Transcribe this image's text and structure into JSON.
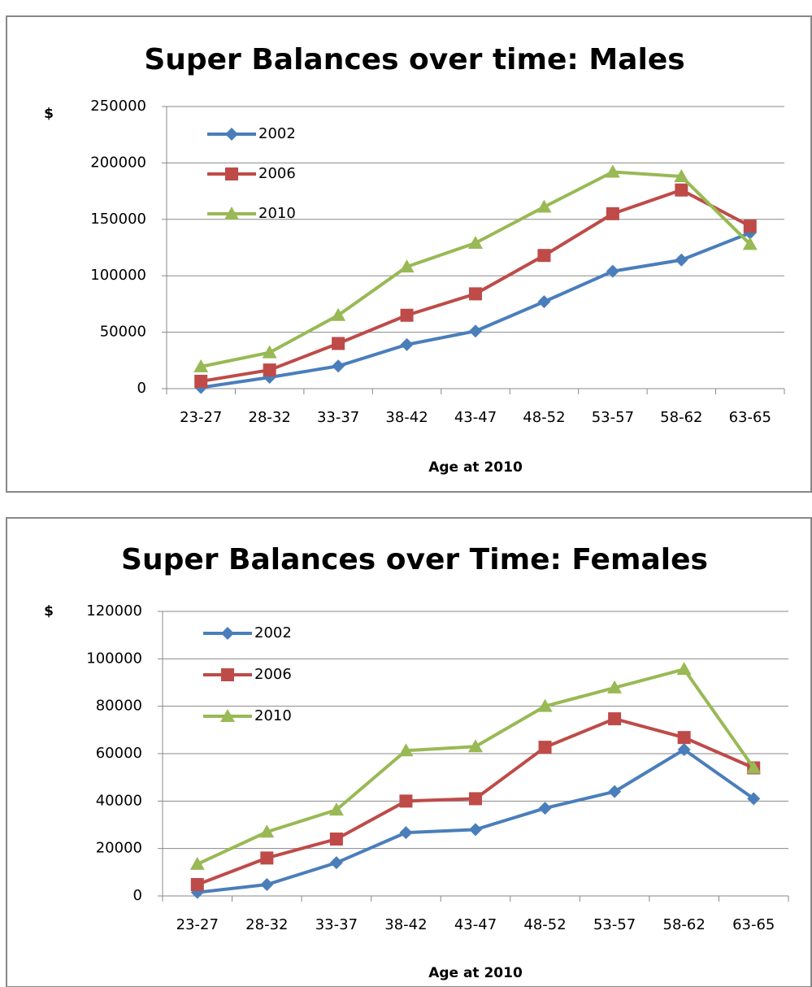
{
  "chart_data": [
    {
      "type": "line",
      "title": "Super Balances over time: Males",
      "y_label": "$",
      "x_label": "Age at 2010",
      "categories": [
        "23-27",
        "28-32",
        "33-37",
        "38-42",
        "43-47",
        "48-52",
        "53-57",
        "58-62",
        "63-65"
      ],
      "series": [
        {
          "name": "2002",
          "color": "#4a7ebb",
          "marker": "diamond",
          "values": [
            1000,
            10000,
            20000,
            39000,
            51000,
            77000,
            104000,
            114000,
            138000
          ]
        },
        {
          "name": "2006",
          "color": "#be4b48",
          "marker": "square",
          "values": [
            6500,
            16500,
            40000,
            65000,
            84000,
            118000,
            155000,
            176000,
            144000
          ]
        },
        {
          "name": "2010",
          "color": "#98b954",
          "marker": "triangle",
          "values": [
            19500,
            32000,
            65000,
            108000,
            129000,
            161000,
            192000,
            188000,
            128000
          ]
        }
      ],
      "ylim": [
        0,
        250000
      ],
      "yticks": [
        0,
        50000,
        100000,
        150000,
        200000,
        250000
      ],
      "grid": true,
      "legend": "upper left"
    },
    {
      "type": "line",
      "title": "Super Balances over Time: Females",
      "y_label": "$",
      "x_label": "Age at 2010",
      "categories": [
        "23-27",
        "28-32",
        "33-37",
        "38-42",
        "43-47",
        "48-52",
        "53-57",
        "58-62",
        "63-65"
      ],
      "series": [
        {
          "name": "2002",
          "color": "#4a7ebb",
          "marker": "diamond",
          "values": [
            1500,
            4800,
            14000,
            26700,
            28000,
            37000,
            44000,
            61700,
            41000
          ]
        },
        {
          "name": "2006",
          "color": "#be4b48",
          "marker": "square",
          "values": [
            4800,
            16000,
            24000,
            40000,
            41000,
            62700,
            74700,
            66800,
            54000
          ]
        },
        {
          "name": "2010",
          "color": "#98b954",
          "marker": "triangle",
          "values": [
            13400,
            27000,
            36300,
            61300,
            63000,
            80000,
            87800,
            95600,
            54000
          ]
        }
      ],
      "ylim": [
        0,
        120000
      ],
      "yticks": [
        0,
        20000,
        40000,
        60000,
        80000,
        100000,
        120000
      ],
      "grid": true,
      "legend": "upper left"
    }
  ]
}
